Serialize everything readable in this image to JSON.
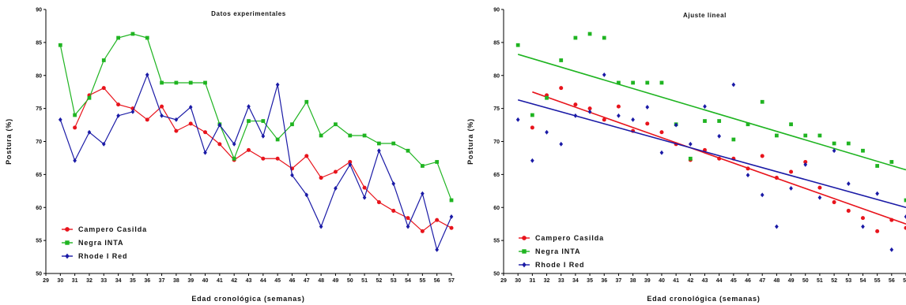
{
  "chart_data": [
    {
      "type": "line",
      "title": "Datos experimentales",
      "xlabel": "Edad cronológica (semanas)",
      "ylabel": "Postura (%)",
      "xlim": [
        29,
        57
      ],
      "ylim": [
        50,
        90
      ],
      "xticks": [
        29,
        30,
        31,
        32,
        33,
        34,
        35,
        36,
        37,
        38,
        39,
        40,
        41,
        42,
        43,
        44,
        45,
        46,
        47,
        48,
        49,
        50,
        51,
        52,
        53,
        54,
        55,
        56,
        57
      ],
      "yticks": [
        50,
        55,
        60,
        65,
        70,
        75,
        80,
        85,
        90
      ],
      "legend_position": "bottom-left",
      "series": [
        {
          "name": "Campero Casilda",
          "color": "#e8141c",
          "marker": "circle",
          "x": [
            31,
            32,
            33,
            34,
            35,
            36,
            37,
            38,
            39,
            40,
            41,
            42,
            43,
            44,
            45,
            46,
            47,
            48,
            49,
            50,
            51,
            52,
            53,
            54,
            55,
            56,
            57
          ],
          "values": [
            72.1,
            77.0,
            78.1,
            75.6,
            75.0,
            73.3,
            75.3,
            71.6,
            72.7,
            71.4,
            69.6,
            67.2,
            68.7,
            67.4,
            67.4,
            65.9,
            67.8,
            64.5,
            65.4,
            66.9,
            63.0,
            60.8,
            59.5,
            58.4,
            56.4,
            58.1,
            56.9
          ]
        },
        {
          "name": "Negra INTA",
          "color": "#1fb421",
          "marker": "square",
          "x": [
            30,
            31,
            32,
            33,
            34,
            35,
            36,
            37,
            38,
            39,
            40,
            41,
            42,
            43,
            44,
            45,
            46,
            47,
            48,
            49,
            50,
            51,
            52,
            53,
            54,
            55,
            56,
            57
          ],
          "values": [
            84.6,
            74.0,
            76.6,
            82.3,
            85.7,
            86.3,
            85.7,
            78.9,
            78.9,
            78.9,
            78.9,
            72.6,
            67.4,
            73.1,
            73.1,
            70.3,
            72.6,
            76.0,
            70.9,
            72.6,
            70.9,
            70.9,
            69.7,
            69.7,
            68.6,
            66.3,
            66.9,
            61.1
          ]
        },
        {
          "name": "Rhode I Red",
          "color": "#1a1aa6",
          "marker": "diamond",
          "x": [
            30,
            31,
            32,
            33,
            34,
            35,
            36,
            37,
            38,
            39,
            40,
            41,
            42,
            43,
            44,
            45,
            46,
            47,
            48,
            49,
            50,
            51,
            52,
            53,
            54,
            55,
            56,
            57
          ],
          "values": [
            73.3,
            67.1,
            71.4,
            69.6,
            73.9,
            74.5,
            80.1,
            73.9,
            73.3,
            75.2,
            68.3,
            72.5,
            69.6,
            75.3,
            70.8,
            78.6,
            64.9,
            61.9,
            57.1,
            62.9,
            66.5,
            61.5,
            68.6,
            63.6,
            57.1,
            62.1,
            53.6,
            58.6
          ]
        }
      ]
    },
    {
      "type": "scatter",
      "title": "Ajuste lineal",
      "xlabel": "Edad cronológica (semanas)",
      "ylabel": "Postura (%)",
      "xlim": [
        29,
        57
      ],
      "ylim": [
        50,
        90
      ],
      "xticks": [
        29,
        30,
        31,
        32,
        33,
        34,
        35,
        36,
        37,
        38,
        39,
        40,
        41,
        42,
        43,
        44,
        45,
        46,
        47,
        48,
        49,
        50,
        51,
        52,
        53,
        54,
        55,
        56,
        57
      ],
      "yticks": [
        50,
        55,
        60,
        65,
        70,
        75,
        80,
        85,
        90
      ],
      "legend_position": "bottom-left",
      "series": [
        {
          "name": "Campero Casilda",
          "color": "#e8141c",
          "marker": "circle",
          "x": [
            31,
            32,
            33,
            34,
            35,
            36,
            37,
            38,
            39,
            40,
            41,
            42,
            43,
            44,
            45,
            46,
            47,
            48,
            49,
            50,
            51,
            52,
            53,
            54,
            55,
            56,
            57
          ],
          "values": [
            72.1,
            77.0,
            78.1,
            75.6,
            75.0,
            73.3,
            75.3,
            71.6,
            72.7,
            71.4,
            69.6,
            67.2,
            68.7,
            67.4,
            67.4,
            65.9,
            67.8,
            64.5,
            65.4,
            66.9,
            63.0,
            60.8,
            59.5,
            58.4,
            56.4,
            58.1,
            56.9
          ],
          "fit": {
            "x": [
              31,
              57
            ],
            "y": [
              77.5,
              57.5
            ]
          }
        },
        {
          "name": "Negra INTA",
          "color": "#1fb421",
          "marker": "square",
          "x": [
            30,
            31,
            32,
            33,
            34,
            35,
            36,
            37,
            38,
            39,
            40,
            41,
            42,
            43,
            44,
            45,
            46,
            47,
            48,
            49,
            50,
            51,
            52,
            53,
            54,
            55,
            56,
            57
          ],
          "values": [
            84.6,
            74.0,
            76.6,
            82.3,
            85.7,
            86.3,
            85.7,
            78.9,
            78.9,
            78.9,
            78.9,
            72.6,
            67.4,
            73.1,
            73.1,
            70.3,
            72.6,
            76.0,
            70.9,
            72.6,
            70.9,
            70.9,
            69.7,
            69.7,
            68.6,
            66.3,
            66.9,
            61.1
          ],
          "fit": {
            "x": [
              30,
              57
            ],
            "y": [
              83.2,
              65.7
            ]
          }
        },
        {
          "name": "Rhode I Red",
          "color": "#1a1aa6",
          "marker": "diamond",
          "x": [
            30,
            31,
            32,
            33,
            34,
            35,
            36,
            37,
            38,
            39,
            40,
            41,
            42,
            43,
            44,
            45,
            46,
            47,
            48,
            49,
            50,
            51,
            52,
            53,
            54,
            55,
            56,
            57
          ],
          "values": [
            73.3,
            67.1,
            71.4,
            69.6,
            73.9,
            74.5,
            80.1,
            73.9,
            73.3,
            75.2,
            68.3,
            72.5,
            69.6,
            75.3,
            70.8,
            78.6,
            64.9,
            61.9,
            57.1,
            62.9,
            66.5,
            61.5,
            68.6,
            63.6,
            57.1,
            62.1,
            53.6,
            58.6
          ],
          "fit": {
            "x": [
              30,
              57
            ],
            "y": [
              76.3,
              60.0
            ]
          }
        }
      ]
    }
  ]
}
